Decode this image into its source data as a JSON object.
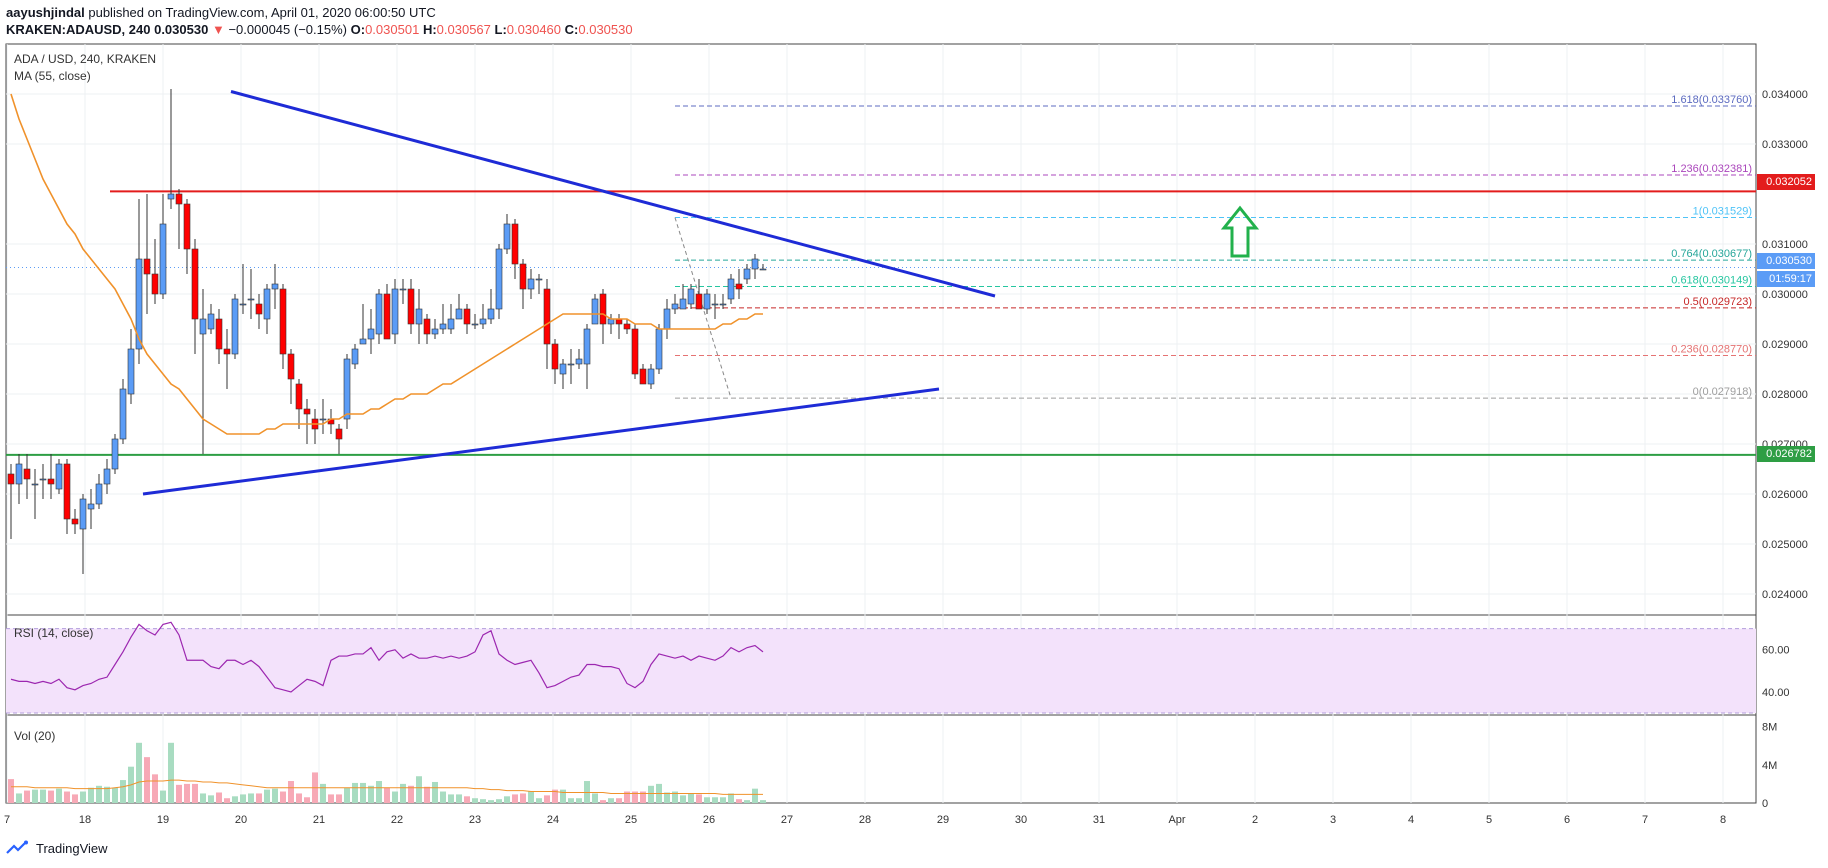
{
  "header": {
    "author": "aayushjindal",
    "published": " published on TradingView.com, April 01, 2020 06:00:50 UTC",
    "symbol": "KRAKEN:ADAUSD, 240",
    "price": "0.030530",
    "down_arrow": "▼",
    "change": "−0.000045 (−0.15%)",
    "o_label": "O:",
    "o_val": "0.030501",
    "h_label": "H:",
    "h_val": "0.030567",
    "l_label": "L:",
    "l_val": "0.030460",
    "c_label": "C:",
    "c_val": "0.030530"
  },
  "pane_titles": {
    "main_symbol": "ADA / USD, 240, KRAKEN",
    "main_ma": "MA (55, close)",
    "rsi": "RSI (14, close)",
    "vol": "Vol (20)"
  },
  "price_tags": {
    "resistance": "0.032052",
    "last": "0.030530",
    "countdown": "01:59:17",
    "support": "0.026782"
  },
  "footer": {
    "brand": "TradingView"
  },
  "colors": {
    "up": "#5b9cf6",
    "down": "#ff0000",
    "ma": "#f0922b",
    "trend": "#1e2bd6",
    "resistance": "#e31c1c",
    "support": "#2e9e44",
    "rsi": "#9c27b0",
    "rsi_band": "#f3e2fb",
    "vol_up": "#a8dcc1",
    "vol_down": "#f7a9b6"
  },
  "chart_data": [
    {
      "type": "candlestick",
      "title": "ADA / USD, 240, KRAKEN",
      "x_ticks": [
        "7",
        "18",
        "19",
        "20",
        "21",
        "22",
        "23",
        "24",
        "25",
        "26",
        "27",
        "28",
        "29",
        "30",
        "31",
        "Apr",
        "2",
        "3",
        "4",
        "5",
        "6",
        "7",
        "8"
      ],
      "y_ticks": [
        "0.034000",
        "0.033000",
        "0.031000",
        "0.030000",
        "0.029000",
        "0.028000",
        "0.027000",
        "0.026000",
        "0.025000",
        "0.024000"
      ],
      "ylim": [
        0.0236,
        0.035
      ],
      "candles": [
        [
          0.0264,
          0.0262,
          0.0266,
          0.0251
        ],
        [
          0.0262,
          0.0266,
          0.0268,
          0.0258
        ],
        [
          0.0265,
          0.0263,
          0.0268,
          0.0259
        ],
        [
          0.0262,
          0.0262,
          0.0265,
          0.0255
        ],
        [
          0.0263,
          0.0263,
          0.0266,
          0.0259
        ],
        [
          0.0263,
          0.0262,
          0.0268,
          0.0259
        ],
        [
          0.0261,
          0.0266,
          0.0267,
          0.026
        ],
        [
          0.0266,
          0.0255,
          0.0267,
          0.0252
        ],
        [
          0.0255,
          0.0254,
          0.0257,
          0.0252
        ],
        [
          0.0253,
          0.0259,
          0.026,
          0.0244
        ],
        [
          0.0257,
          0.0258,
          0.0261,
          0.0253
        ],
        [
          0.0258,
          0.0262,
          0.0264,
          0.0257
        ],
        [
          0.0262,
          0.0265,
          0.0267,
          0.026
        ],
        [
          0.0265,
          0.0271,
          0.0272,
          0.0264
        ],
        [
          0.0271,
          0.0281,
          0.0283,
          0.027
        ],
        [
          0.028,
          0.0289,
          0.0293,
          0.0278
        ],
        [
          0.0289,
          0.0307,
          0.0319,
          0.0286
        ],
        [
          0.0307,
          0.0304,
          0.032,
          0.0296
        ],
        [
          0.0304,
          0.03,
          0.0311,
          0.0298
        ],
        [
          0.03,
          0.0314,
          0.032,
          0.0299
        ],
        [
          0.0319,
          0.032,
          0.0341,
          0.0317
        ],
        [
          0.032,
          0.0318,
          0.0321,
          0.0309
        ],
        [
          0.0318,
          0.0309,
          0.0319,
          0.0304
        ],
        [
          0.0309,
          0.0295,
          0.0311,
          0.0288
        ],
        [
          0.0292,
          0.0295,
          0.0301,
          0.0268
        ],
        [
          0.0293,
          0.0296,
          0.0298,
          0.0292
        ],
        [
          0.0295,
          0.0289,
          0.0297,
          0.0286
        ],
        [
          0.0289,
          0.0288,
          0.0293,
          0.0281
        ],
        [
          0.0288,
          0.0299,
          0.03,
          0.0287
        ],
        [
          0.0298,
          0.0298,
          0.0306,
          0.0296
        ],
        [
          0.0299,
          0.0299,
          0.0305,
          0.0295
        ],
        [
          0.0298,
          0.0296,
          0.03,
          0.0293
        ],
        [
          0.0295,
          0.0301,
          0.0302,
          0.0292
        ],
        [
          0.0301,
          0.0302,
          0.0306,
          0.0297
        ],
        [
          0.0301,
          0.0288,
          0.0302,
          0.0285
        ],
        [
          0.0288,
          0.0283,
          0.0289,
          0.0278
        ],
        [
          0.0282,
          0.0277,
          0.0283,
          0.0273
        ],
        [
          0.0277,
          0.0276,
          0.0279,
          0.027
        ],
        [
          0.0275,
          0.0273,
          0.0277,
          0.027
        ],
        [
          0.0275,
          0.0275,
          0.0279,
          0.0272
        ],
        [
          0.0275,
          0.0274,
          0.0277,
          0.0272
        ],
        [
          0.0273,
          0.0271,
          0.0274,
          0.0268
        ],
        [
          0.0275,
          0.0287,
          0.0288,
          0.0273
        ],
        [
          0.0286,
          0.0289,
          0.029,
          0.0285
        ],
        [
          0.029,
          0.0291,
          0.0298,
          0.029
        ],
        [
          0.0291,
          0.0293,
          0.0297,
          0.0288
        ],
        [
          0.0292,
          0.03,
          0.0301,
          0.029
        ],
        [
          0.03,
          0.0291,
          0.0302,
          0.0291
        ],
        [
          0.0292,
          0.0301,
          0.0303,
          0.029
        ],
        [
          0.0301,
          0.0301,
          0.0303,
          0.0298
        ],
        [
          0.0301,
          0.0294,
          0.0303,
          0.0292
        ],
        [
          0.0294,
          0.0297,
          0.0301,
          0.029
        ],
        [
          0.0295,
          0.0292,
          0.0296,
          0.029
        ],
        [
          0.0292,
          0.0293,
          0.0295,
          0.0291
        ],
        [
          0.0293,
          0.0294,
          0.0298,
          0.0292
        ],
        [
          0.0293,
          0.0295,
          0.0298,
          0.0292
        ],
        [
          0.0295,
          0.0297,
          0.03,
          0.0295
        ],
        [
          0.0297,
          0.0294,
          0.0298,
          0.0292
        ],
        [
          0.0294,
          0.0294,
          0.0296,
          0.0293
        ],
        [
          0.0294,
          0.0295,
          0.0298,
          0.0293
        ],
        [
          0.0295,
          0.0297,
          0.0301,
          0.0294
        ],
        [
          0.0297,
          0.0309,
          0.031,
          0.0295
        ],
        [
          0.0309,
          0.0314,
          0.0316,
          0.0308
        ],
        [
          0.0314,
          0.0306,
          0.0315,
          0.0303
        ],
        [
          0.0306,
          0.0301,
          0.0307,
          0.0297
        ],
        [
          0.0301,
          0.0303,
          0.0305,
          0.0299
        ],
        [
          0.0303,
          0.0303,
          0.0304,
          0.03
        ],
        [
          0.0301,
          0.029,
          0.0303,
          0.0285
        ],
        [
          0.029,
          0.0285,
          0.0291,
          0.0282
        ],
        [
          0.0284,
          0.0286,
          0.0287,
          0.0281
        ],
        [
          0.0286,
          0.0286,
          0.0289,
          0.0282
        ],
        [
          0.0286,
          0.0287,
          0.0289,
          0.0285
        ],
        [
          0.0286,
          0.0293,
          0.0294,
          0.0281
        ],
        [
          0.0294,
          0.0299,
          0.03,
          0.0294
        ],
        [
          0.03,
          0.0294,
          0.0301,
          0.029
        ],
        [
          0.0294,
          0.0295,
          0.0296,
          0.0292
        ],
        [
          0.0295,
          0.0294,
          0.0296,
          0.0291
        ],
        [
          0.0294,
          0.0293,
          0.0295,
          0.0292
        ],
        [
          0.0293,
          0.0284,
          0.0294,
          0.0283
        ],
        [
          0.0285,
          0.0282,
          0.0286,
          0.0282
        ],
        [
          0.0282,
          0.0285,
          0.0286,
          0.0281
        ],
        [
          0.0285,
          0.0293,
          0.0294,
          0.0284
        ],
        [
          0.0293,
          0.0297,
          0.0299,
          0.0291
        ],
        [
          0.0297,
          0.0298,
          0.03,
          0.0296
        ],
        [
          0.0297,
          0.0299,
          0.0302,
          0.0297
        ],
        [
          0.0298,
          0.0301,
          0.0302,
          0.0297
        ],
        [
          0.03,
          0.0297,
          0.0303,
          0.0297
        ],
        [
          0.0297,
          0.03,
          0.0301,
          0.0296
        ],
        [
          0.0298,
          0.0298,
          0.03,
          0.0295
        ],
        [
          0.0298,
          0.0298,
          0.03,
          0.0297
        ],
        [
          0.0299,
          0.0303,
          0.0304,
          0.0298
        ],
        [
          0.0302,
          0.0301,
          0.0305,
          0.0299
        ],
        [
          0.0303,
          0.0305,
          0.0306,
          0.0302
        ],
        [
          0.0305,
          0.0307,
          0.0308,
          0.0303
        ],
        [
          0.0305,
          0.0305,
          0.0306,
          0.0305
        ]
      ],
      "ma": [
        0.034,
        0.0335,
        0.0331,
        0.0327,
        0.0323,
        0.032,
        0.0317,
        0.0314,
        0.0312,
        0.0309,
        0.0307,
        0.0305,
        0.0303,
        0.0301,
        0.0298,
        0.0295,
        0.0291,
        0.0288,
        0.0286,
        0.0284,
        0.0282,
        0.0281,
        0.0279,
        0.0277,
        0.0275,
        0.0274,
        0.0273,
        0.0272,
        0.0272,
        0.0272,
        0.0272,
        0.0272,
        0.0273,
        0.0273,
        0.0274,
        0.0274,
        0.0274,
        0.0274,
        0.0274,
        0.0274,
        0.0275,
        0.0275,
        0.0276,
        0.0276,
        0.0276,
        0.0277,
        0.0277,
        0.0278,
        0.0279,
        0.0279,
        0.028,
        0.028,
        0.028,
        0.0281,
        0.0282,
        0.0282,
        0.0283,
        0.0284,
        0.0285,
        0.0286,
        0.0287,
        0.0288,
        0.0289,
        0.029,
        0.0291,
        0.0292,
        0.0293,
        0.0294,
        0.0295,
        0.0296,
        0.0296,
        0.0296,
        0.0296,
        0.0296,
        0.0296,
        0.0295,
        0.0295,
        0.0295,
        0.0294,
        0.0294,
        0.0294,
        0.0293,
        0.0293,
        0.0293,
        0.0293,
        0.0293,
        0.0293,
        0.0293,
        0.0293,
        0.0294,
        0.0294,
        0.0295,
        0.0295,
        0.0296,
        0.0296
      ],
      "resistance": 0.032052,
      "support": 0.026782,
      "fib_levels": [
        {
          "label": "1.618(0.033760)",
          "value": 0.03376,
          "color": "#5c6bc0"
        },
        {
          "label": "1.236(0.032381)",
          "value": 0.032381,
          "color": "#ab47bc"
        },
        {
          "label": "1(0.031529)",
          "value": 0.031529,
          "color": "#4fc3f7"
        },
        {
          "label": "0.764(0.030677)",
          "value": 0.030677,
          "color": "#26a69a"
        },
        {
          "label": "0.618(0.030149)",
          "value": 0.030149,
          "color": "#26c6a0"
        },
        {
          "label": "0.5(0.029723)",
          "value": 0.029723,
          "color": "#c62828"
        },
        {
          "label": "0.236(0.028770)",
          "value": 0.02877,
          "color": "#e57373"
        },
        {
          "label": "0(0.027918)",
          "value": 0.027918,
          "color": "#9e9e9e"
        }
      ]
    },
    {
      "type": "line",
      "title": "RSI (14, close)",
      "y_ticks": [
        "60.00",
        "40.00"
      ],
      "ylim": [
        30,
        76
      ],
      "values": [
        46,
        45,
        45,
        44,
        45,
        44,
        46,
        42,
        41,
        43,
        44,
        46,
        47,
        53,
        59,
        66,
        72,
        69,
        67,
        72,
        73,
        67,
        55,
        55,
        55,
        52,
        51,
        55,
        55,
        53,
        55,
        52,
        47,
        42,
        41,
        40,
        43,
        46,
        45,
        43,
        55,
        57,
        57,
        58,
        58,
        61,
        55,
        59,
        60,
        56,
        58,
        56,
        56,
        57,
        56,
        57,
        56,
        57,
        59,
        67,
        69,
        58,
        55,
        53,
        54,
        55,
        49,
        42,
        43,
        45,
        47,
        48,
        53,
        53,
        52,
        52,
        51,
        44,
        42,
        45,
        53,
        58,
        57,
        56,
        57,
        55,
        57,
        56,
        55,
        57,
        61,
        59,
        61,
        62,
        59
      ]
    },
    {
      "type": "bar",
      "title": "Vol (20)",
      "y_ticks": [
        "8M",
        "4M",
        "0"
      ],
      "ylim": [
        0,
        9
      ],
      "values": [
        2.5,
        1.0,
        1.3,
        1.4,
        1.4,
        1.3,
        1.5,
        1.2,
        0.9,
        1.2,
        1.6,
        1.8,
        1.7,
        1.6,
        2.4,
        3.8,
        6.3,
        4.8,
        3.0,
        1.3,
        6.3,
        1.9,
        2.0,
        2.0,
        1.0,
        0.8,
        1.1,
        0.5,
        0.7,
        0.9,
        1.0,
        1.0,
        1.4,
        1.5,
        1.2,
        2.3,
        1.0,
        0.6,
        3.2,
        2.0,
        0.9,
        0.9,
        1.6,
        2.1,
        2.1,
        1.8,
        2.3,
        1.6,
        1.2,
        2.0,
        1.8,
        2.8,
        1.7,
        2.2,
        1.2,
        0.9,
        0.9,
        0.7,
        0.5,
        0.4,
        0.3,
        0.4,
        0.7,
        0.9,
        1.0,
        1.2,
        0.5,
        0.8,
        1.4,
        1.4,
        0.5,
        0.5,
        2.3,
        1.0,
        0.3,
        0.5,
        0.5,
        1.2,
        1.2,
        1.2,
        1.8,
        2.0,
        1.1,
        1.2,
        0.8,
        1.0,
        0.9,
        0.6,
        0.6,
        0.6,
        1.0,
        0.4,
        0.3,
        1.5,
        0.3
      ],
      "ma": [
        1.7,
        1.7,
        1.7,
        1.6,
        1.6,
        1.6,
        1.6,
        1.6,
        1.5,
        1.5,
        1.5,
        1.5,
        1.5,
        1.6,
        1.7,
        1.9,
        2.2,
        2.3,
        2.3,
        2.3,
        2.4,
        2.4,
        2.3,
        2.3,
        2.2,
        2.2,
        2.1,
        2.1,
        2.0,
        1.9,
        1.8,
        1.7,
        1.6,
        1.6,
        1.6,
        1.6,
        1.6,
        1.6,
        1.6,
        1.6,
        1.6,
        1.6,
        1.6,
        1.6,
        1.6,
        1.6,
        1.6,
        1.6,
        1.6,
        1.6,
        1.6,
        1.6,
        1.6,
        1.6,
        1.6,
        1.6,
        1.6,
        1.6,
        1.5,
        1.5,
        1.4,
        1.4,
        1.3,
        1.3,
        1.3,
        1.2,
        1.2,
        1.2,
        1.2,
        1.1,
        1.1,
        1.1,
        1.1,
        1.1,
        1.1,
        1.0,
        1.0,
        1.0,
        1.0,
        1.0,
        1.0,
        1.0,
        1.0,
        1.0,
        1.0,
        1.0,
        1.0,
        1.0,
        1.0,
        0.9,
        0.9,
        0.9,
        0.9,
        0.9,
        0.9
      ]
    }
  ]
}
